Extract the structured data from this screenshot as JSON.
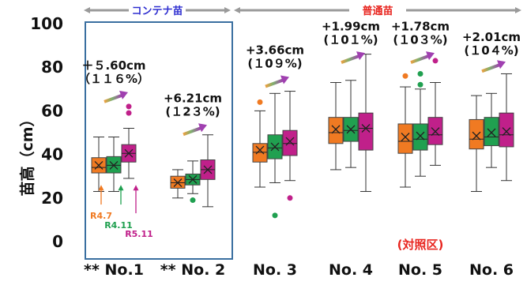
{
  "chart_data": {
    "type": "box",
    "ylabel": "苗高（cm）",
    "ylim": [
      0,
      100
    ],
    "yticks": [
      0,
      20,
      40,
      60,
      80,
      100
    ],
    "categories": [
      "** No.1",
      "** No. 2",
      "No. 3",
      "No. 4",
      "No. 5",
      "No. 6"
    ],
    "groups": [
      {
        "label": "コンテナ苗",
        "categories": [
          0,
          1
        ],
        "color": "#2f2fd0"
      },
      {
        "label": "普通苗",
        "categories": [
          2,
          3,
          4,
          5
        ],
        "color": "#e8251f"
      }
    ],
    "series": [
      {
        "name": "R4.7",
        "color": "#f07a22"
      },
      {
        "name": "R4.11",
        "color": "#20a050"
      },
      {
        "name": "R5.11",
        "color": "#c0208a"
      }
    ],
    "boxes": [
      [
        {
          "min": 23,
          "q1": 31.5,
          "median": 34,
          "q3": 38.5,
          "max": 48,
          "mean": 35,
          "outliers": []
        },
        {
          "min": 23,
          "q1": 31.5,
          "median": 35,
          "q3": 39,
          "max": 48,
          "mean": 35,
          "outliers": []
        },
        {
          "min": 29,
          "q1": 36.5,
          "median": 40.5,
          "q3": 44.5,
          "max": 52,
          "mean": 40.5,
          "outliers": [
            59,
            62
          ]
        }
      ],
      [
        {
          "min": 20,
          "q1": 24.5,
          "median": 27,
          "q3": 30,
          "max": 33,
          "mean": 27,
          "outliers": []
        },
        {
          "min": 22,
          "q1": 26,
          "median": 28.5,
          "q3": 31,
          "max": 37,
          "mean": 28.5,
          "outliers": [
            19
          ]
        },
        {
          "min": 16,
          "q1": 28.5,
          "median": 33,
          "q3": 37.5,
          "max": 49,
          "mean": 33,
          "outliers": []
        }
      ],
      [
        {
          "min": 25,
          "q1": 36.5,
          "median": 41,
          "q3": 45,
          "max": 60,
          "mean": 42,
          "outliers": [
            64
          ]
        },
        {
          "min": 27,
          "q1": 38,
          "median": 43,
          "q3": 49,
          "max": 68,
          "mean": 43.5,
          "outliers": [
            12
          ]
        },
        {
          "min": 28,
          "q1": 39.5,
          "median": 45,
          "q3": 51,
          "max": 69,
          "mean": 46,
          "outliers": [
            20
          ]
        }
      ],
      [
        {
          "min": 33,
          "q1": 45,
          "median": 50,
          "q3": 57,
          "max": 73,
          "mean": 51.5,
          "outliers": []
        },
        {
          "min": 34,
          "q1": 46,
          "median": 51,
          "q3": 57,
          "max": 74,
          "mean": 51.5,
          "outliers": []
        },
        {
          "min": 23,
          "q1": 42,
          "median": 52,
          "q3": 59,
          "max": 86,
          "mean": 52,
          "outliers": []
        }
      ],
      [
        {
          "min": 25,
          "q1": 40.5,
          "median": 46,
          "q3": 54,
          "max": 71,
          "mean": 48,
          "outliers": [
            76
          ]
        },
        {
          "min": 30,
          "q1": 42,
          "median": 47,
          "q3": 54,
          "max": 70,
          "mean": 48.5,
          "outliers": [
            72,
            77
          ]
        },
        {
          "min": 35,
          "q1": 44.5,
          "median": 49,
          "q3": 57,
          "max": 73,
          "mean": 50.5,
          "outliers": [
            83
          ]
        }
      ],
      [
        {
          "min": 23,
          "q1": 42.5,
          "median": 47,
          "q3": 56,
          "max": 67,
          "mean": 48.5,
          "outliers": []
        },
        {
          "min": 34,
          "q1": 44,
          "median": 48,
          "q3": 57,
          "max": 68,
          "mean": 50,
          "outliers": []
        },
        {
          "min": 28,
          "q1": 43.5,
          "median": 49,
          "q3": 59,
          "max": 77,
          "mean": 50.5,
          "outliers": []
        }
      ]
    ],
    "annotations": [
      {
        "category": 0,
        "line1": "＋５.60cm",
        "line2": "（１１６%）",
        "y": 79
      },
      {
        "category": 1,
        "line1": "+6.21cm",
        "line2": "(１2３%)",
        "y": 64
      },
      {
        "category": 2,
        "line1": "+3.66cm",
        "line2": "(１0９%)",
        "y": 86
      },
      {
        "category": 3,
        "line1": "+1.99cm",
        "line2": "(１0１%)",
        "y": 97
      },
      {
        "category": 4,
        "line1": "+1.78cm",
        "line2": "(１0３%)",
        "y": 97
      },
      {
        "category": 5,
        "line1": "+2.01cm",
        "line2": "(１0４%)",
        "y": 92
      }
    ],
    "arrows": [
      {
        "category": 0,
        "y": 66
      },
      {
        "category": 1,
        "y": 51
      },
      {
        "category": 2,
        "y": 73
      },
      {
        "category": 3,
        "y": 84
      },
      {
        "category": 4,
        "y": 84
      },
      {
        "category": 5,
        "y": 80
      }
    ],
    "reference_label": "(対照区)",
    "reference_category": 4
  }
}
